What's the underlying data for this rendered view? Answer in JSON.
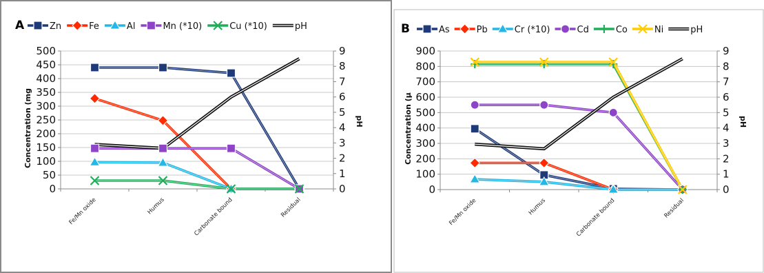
{
  "chart_data": [
    {
      "type": "line",
      "panel_label": "A",
      "categories": [
        "Fe/Mn oxide",
        "Humus",
        "Carbonate bound",
        "Residual"
      ],
      "ylabel": "Concentration (mg",
      "y2label": "pH",
      "ylim": [
        0,
        500
      ],
      "yticks": [
        0,
        50,
        100,
        150,
        200,
        250,
        300,
        350,
        400,
        450,
        500
      ],
      "y2lim": [
        0,
        9
      ],
      "y2ticks": [
        0,
        1,
        2,
        3,
        4,
        5,
        6,
        7,
        8,
        9
      ],
      "grid": true,
      "legend_position": "top",
      "series": [
        {
          "name": "Zn",
          "color": "#1f3a78",
          "marker": "square",
          "values": [
            440,
            440,
            420,
            0
          ]
        },
        {
          "name": "Fe",
          "color": "#ff2a00",
          "marker": "diamond",
          "values": [
            328,
            248,
            0,
            0
          ]
        },
        {
          "name": "Al",
          "color": "#23b7e5",
          "marker": "triangle",
          "values": [
            97,
            95,
            0,
            0
          ]
        },
        {
          "name": "Mn (*10)",
          "color": "#8e44c6",
          "marker": "square",
          "values": [
            147,
            147,
            147,
            0
          ]
        },
        {
          "name": "Cu (*10)",
          "color": "#1eae5a",
          "marker": "x",
          "values": [
            30,
            30,
            0,
            0
          ]
        },
        {
          "name": "pH",
          "color": "#111111",
          "marker": "none",
          "axis": "right",
          "values": [
            2.9,
            2.65,
            6.0,
            8.5
          ]
        }
      ]
    },
    {
      "type": "line",
      "panel_label": "B",
      "categories": [
        "Fe/Mn oxide",
        "Humus",
        "Carbonate bound",
        "Residual"
      ],
      "ylabel": "Concentration (µ",
      "y2label": "pH",
      "ylim": [
        0,
        900
      ],
      "yticks": [
        0,
        100,
        200,
        300,
        400,
        500,
        600,
        700,
        800,
        900
      ],
      "y2lim": [
        0,
        9
      ],
      "y2ticks": [
        0,
        1,
        2,
        3,
        4,
        5,
        6,
        7,
        8,
        9
      ],
      "grid": true,
      "legend_position": "top",
      "series": [
        {
          "name": "As",
          "color": "#1f3a78",
          "marker": "square",
          "values": [
            395,
            95,
            5,
            0
          ]
        },
        {
          "name": "Pb",
          "color": "#ff2a00",
          "marker": "diamond",
          "values": [
            173,
            173,
            0,
            0
          ]
        },
        {
          "name": "Cr (*10)",
          "color": "#23b7e5",
          "marker": "triangle",
          "values": [
            67,
            50,
            0,
            0
          ]
        },
        {
          "name": "Cd",
          "color": "#8e44c6",
          "marker": "circle",
          "values": [
            550,
            550,
            500,
            0
          ]
        },
        {
          "name": "Co",
          "color": "#1eae5a",
          "marker": "plus",
          "values": [
            815,
            815,
            815,
            0
          ]
        },
        {
          "name": "Ni",
          "color": "#ffcc00",
          "marker": "x",
          "values": [
            828,
            828,
            828,
            0
          ]
        },
        {
          "name": "pH",
          "color": "#111111",
          "marker": "none",
          "axis": "right",
          "values": [
            2.95,
            2.65,
            6.0,
            8.5
          ]
        }
      ]
    }
  ]
}
